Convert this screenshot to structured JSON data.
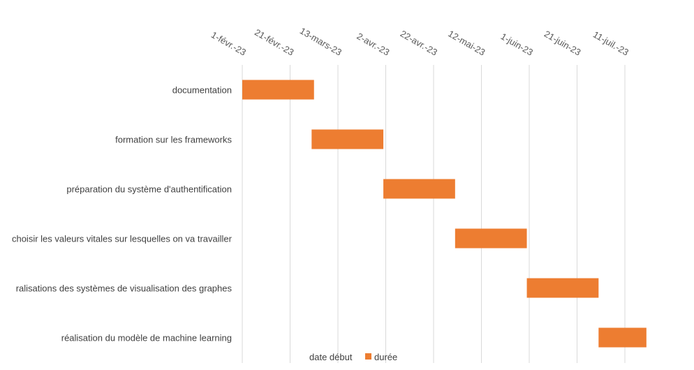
{
  "chart_data": {
    "type": "bar",
    "orientation": "horizontal-gantt",
    "title": "",
    "xlabel": "",
    "ylabel": "",
    "grid": true,
    "legend_position": "bottom",
    "x_ticks": [
      "2023-02-01",
      "2023-02-21",
      "2023-03-13",
      "2023-04-02",
      "2023-04-22",
      "2023-05-12",
      "2023-06-01",
      "2023-06-21",
      "2023-07-11"
    ],
    "x_tick_labels": [
      "1-févr.-23",
      "21-févr.-23",
      "13-mars-23",
      "2-avr.-23",
      "22-avr.-23",
      "12-mai-23",
      "1-juin-23",
      "21-juin-23",
      "11-juil.-23"
    ],
    "categories": [
      "documentation",
      "formation sur les frameworks",
      "préparation du système d'authentification",
      "choisir les valeurs vitales sur lesquelles on va travailler",
      "ralisations des systèmes de visualisation des graphes",
      "réalisation du modèle de machine learning"
    ],
    "series": [
      {
        "name": "date début",
        "values": [
          "2023-02-01",
          "2023-03-02",
          "2023-03-32",
          "2023-05-01",
          "2023-05-31",
          "2023-06-30"
        ]
      },
      {
        "name": "durée",
        "values": [
          30,
          30,
          30,
          30,
          30,
          20
        ]
      }
    ],
    "legend": [
      "date début",
      "durée"
    ],
    "colors": {
      "duree": "#ED7D31",
      "grid": "#D9D9D9",
      "text": "#404040",
      "tick": "#595959"
    }
  }
}
